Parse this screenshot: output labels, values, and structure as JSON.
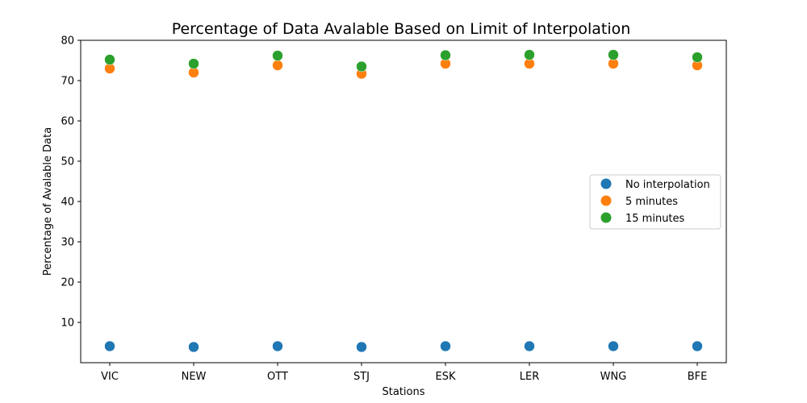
{
  "chart_data": {
    "type": "scatter",
    "title": "Percentage of Data Avalable Based on Limit of Interpolation",
    "xlabel": "Stations",
    "ylabel": "Percentage of Avalable Data",
    "categories": [
      "VIC",
      "NEW",
      "OTT",
      "STJ",
      "ESK",
      "LER",
      "WNG",
      "BFE"
    ],
    "ylim": [
      0,
      80
    ],
    "yticks": [
      10,
      20,
      30,
      40,
      50,
      60,
      70,
      80
    ],
    "grid": false,
    "legend_position": "center-right",
    "series": [
      {
        "name": "No interpolation",
        "color": "#1f77b4",
        "values": [
          4.1,
          3.9,
          4.1,
          3.9,
          4.1,
          4.1,
          4.1,
          4.1
        ]
      },
      {
        "name": "5 minutes",
        "color": "#ff7f0e",
        "values": [
          73.0,
          72.0,
          73.8,
          71.7,
          74.2,
          74.2,
          74.2,
          73.8
        ]
      },
      {
        "name": "15 minutes",
        "color": "#2ca02c",
        "values": [
          75.2,
          74.2,
          76.2,
          73.5,
          76.3,
          76.4,
          76.4,
          75.8
        ]
      }
    ]
  }
}
